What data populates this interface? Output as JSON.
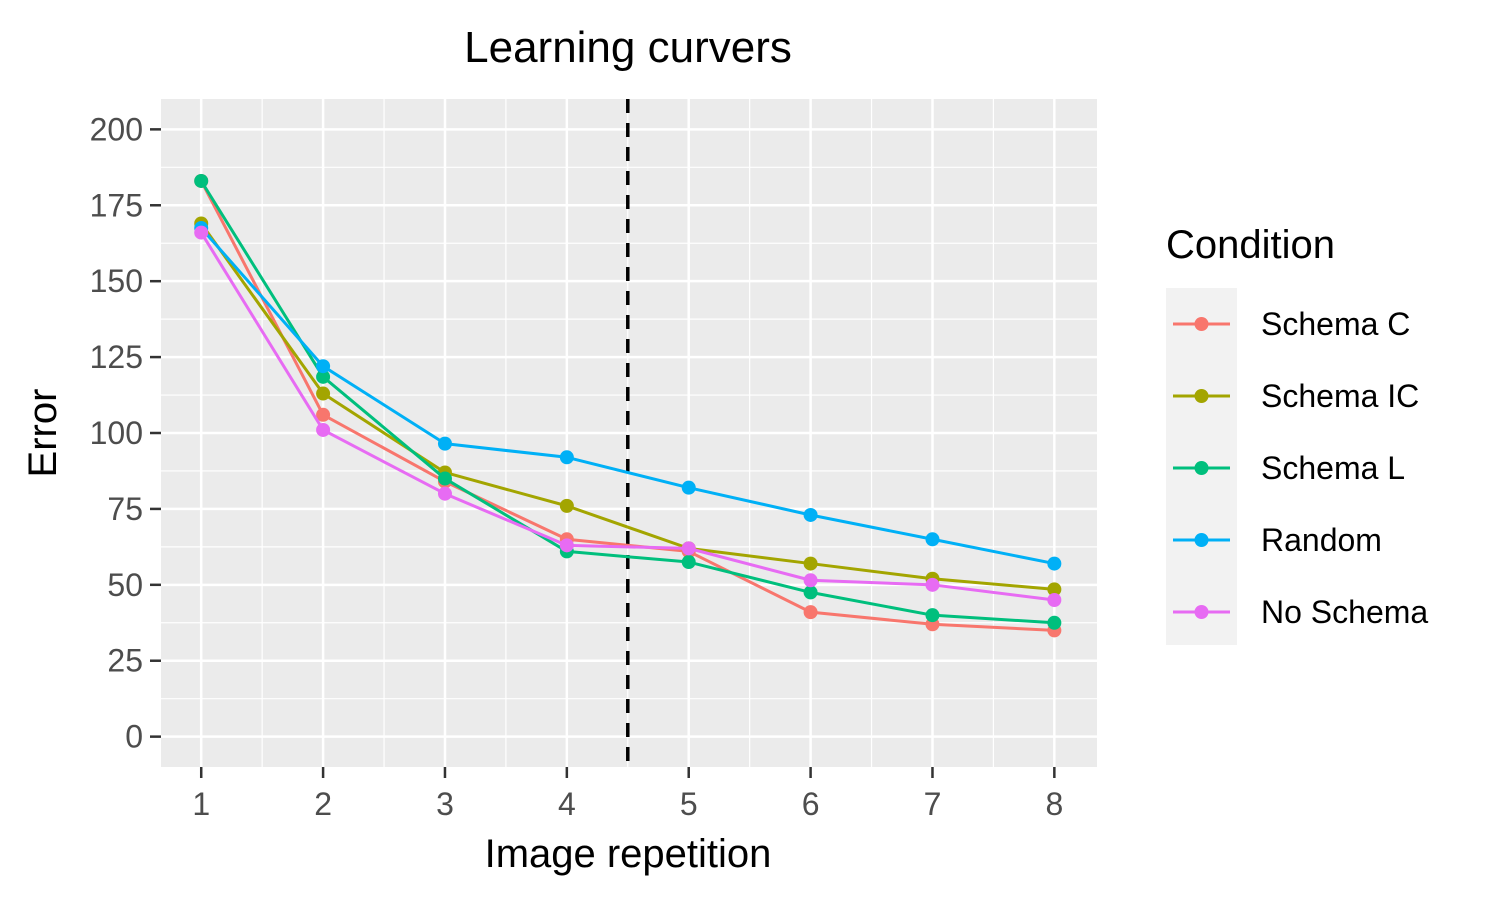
{
  "chart_data": {
    "type": "line",
    "title": "Learning curvers",
    "xlabel": "Image repetition",
    "ylabel": "Error",
    "x": [
      1,
      2,
      3,
      4,
      5,
      6,
      7,
      8
    ],
    "xlim": [
      0.67,
      8.35
    ],
    "ylim": [
      -10,
      210
    ],
    "yticks": [
      0,
      25,
      50,
      75,
      100,
      125,
      150,
      175,
      200
    ],
    "grid": true,
    "vline": {
      "x": 4.5,
      "style": "dashed",
      "color": "#000000"
    },
    "legend": {
      "title": "Condition",
      "position": "right"
    },
    "series": [
      {
        "name": "Schema C",
        "color": "#F8766D",
        "values": [
          183,
          106,
          84,
          65,
          61,
          41,
          37,
          35
        ]
      },
      {
        "name": "Schema IC",
        "color": "#A3A500",
        "values": [
          169,
          113,
          87,
          76,
          62,
          57,
          52,
          48.5
        ]
      },
      {
        "name": "Schema L",
        "color": "#00BF7D",
        "values": [
          183,
          118.5,
          85,
          61,
          57.5,
          47.5,
          40,
          37.5
        ]
      },
      {
        "name": "Random",
        "color": "#00B0F6",
        "values": [
          167.5,
          122,
          96.5,
          92,
          82,
          73,
          65,
          57
        ]
      },
      {
        "name": "No Schema",
        "color": "#E76BF3",
        "values": [
          166,
          101,
          80,
          63,
          62,
          51.5,
          50,
          45
        ]
      }
    ]
  }
}
